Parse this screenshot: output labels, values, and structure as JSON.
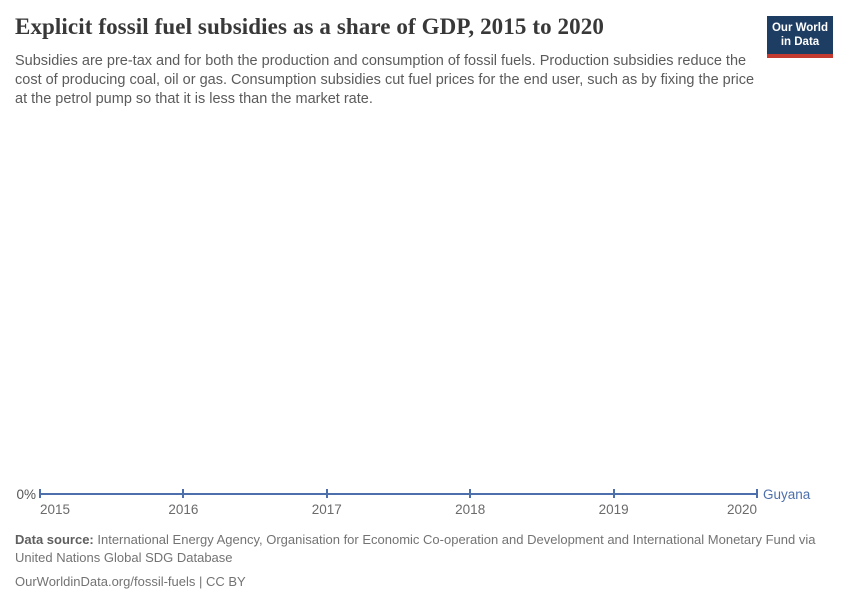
{
  "header": {
    "title": "Explicit fossil fuel subsidies as a share of GDP, 2015 to 2020",
    "subtitle": "Subsidies are pre-tax and for both the production and consumption of fossil fuels. Production subsidies reduce the cost of producing coal, oil or gas. Consumption subsidies cut fuel prices for the end user, such as by fixing the price at the petrol pump so that it is less than the market rate."
  },
  "logo": {
    "line1": "Our World",
    "line2": "in Data",
    "bg_color": "#1d3d63",
    "accent_color": "#c43a31"
  },
  "chart_data": {
    "type": "line",
    "title": "Explicit fossil fuel subsidies as a share of GDP, 2015 to 2020",
    "x": [
      2015,
      2016,
      2017,
      2018,
      2019,
      2020
    ],
    "x_tick_labels": [
      "2015",
      "2016",
      "2017",
      "2018",
      "2019",
      "2020"
    ],
    "series": [
      {
        "name": "Guyana",
        "color": "#4d6fac",
        "values": [
          0,
          0,
          0,
          0,
          0,
          0
        ]
      }
    ],
    "y_axis": {
      "tick_labels": [
        "0%"
      ],
      "min": 0
    },
    "grid": false,
    "legend_position": "right-of-line-end"
  },
  "footer": {
    "source_label": "Data source:",
    "source_text": "International Energy Agency, Organisation for Economic Co-operation and Development and International Monetary Fund via United Nations Global SDG Database",
    "license_line": "OurWorldinData.org/fossil-fuels | CC BY"
  }
}
